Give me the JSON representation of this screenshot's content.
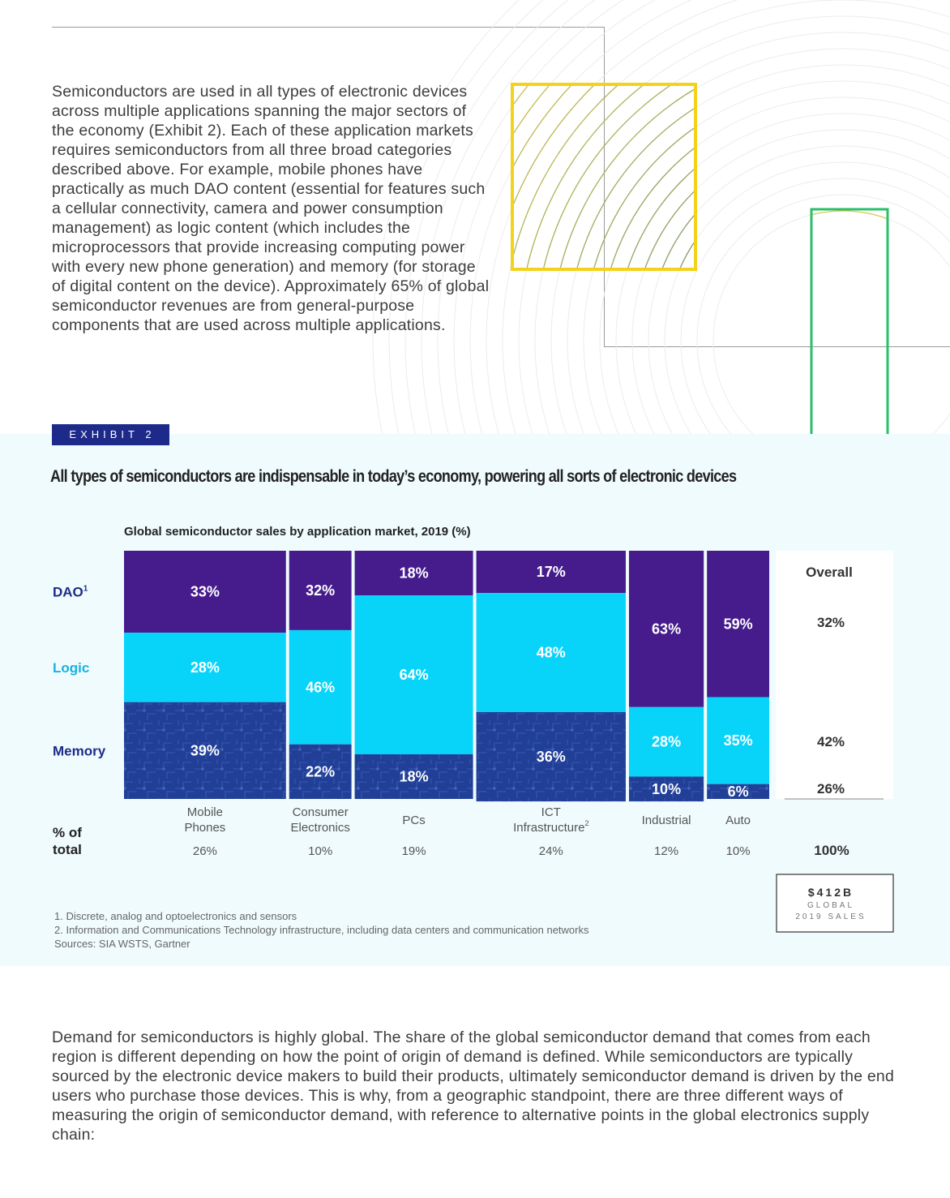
{
  "intro_paragraph": "Semiconductors are used in all types of electronic devices across multiple applications spanning the major sectors of the economy (Exhibit 2). Each of these application markets requires semiconductors from all three broad categories described above. For example, mobile phones have practically as much DAO content (essential for features such a cellular connectivity, camera and power consumption management) as logic content (which includes the microprocessors that provide increasing computing power with every new phone generation) and memory (for storage of digital content on the device). Approximately 65% of global semiconductor revenues are from general-purpose components that are used across multiple applications.",
  "exhibit": {
    "label": "EXHIBIT 2",
    "title": "All types of semiconductors are indispensable in today’s economy, powering all sorts of electronic devices"
  },
  "chart_data": {
    "type": "bar",
    "subtype": "marimekko",
    "title": "Global semiconductor sales by application market, 2019 (%)",
    "categories": [
      {
        "line1": "Mobile",
        "line2": "Phones"
      },
      {
        "line1": "Consumer",
        "line2": "Electronics"
      },
      {
        "line1": "PCs",
        "line2": ""
      },
      {
        "line1": "ICT",
        "line2": "Infrastructure",
        "sup": "2"
      },
      {
        "line1": "Industrial",
        "line2": ""
      },
      {
        "line1": "Auto",
        "line2": ""
      }
    ],
    "share_of_total_values": [
      26,
      10,
      19,
      24,
      12,
      10
    ],
    "share_of_total_labels": [
      "26%",
      "10%",
      "19%",
      "24%",
      "12%",
      "10%"
    ],
    "series": [
      {
        "name": "DAO",
        "sup": "1",
        "values": [
          33,
          32,
          18,
          17,
          63,
          59
        ],
        "labels": [
          "33%",
          "32%",
          "18%",
          "17%",
          "63%",
          "59%"
        ]
      },
      {
        "name": "Logic",
        "values": [
          28,
          46,
          64,
          48,
          28,
          35
        ],
        "labels": [
          "28%",
          "46%",
          "64%",
          "48%",
          "28%",
          "35%"
        ]
      },
      {
        "name": "Memory",
        "values": [
          39,
          22,
          18,
          36,
          10,
          6
        ],
        "labels": [
          "39%",
          "22%",
          "18%",
          "36%",
          "10%",
          "6%"
        ]
      }
    ],
    "colors": {
      "DAO": "#461c8c",
      "Logic": "#08d4fa",
      "Memory": "#213f97"
    },
    "label_colors": {
      "DAO": "#1d2a8a",
      "Logic": "#14b4e0",
      "Memory": "#1d2a8a"
    },
    "row_header": {
      "line1": "% of",
      "line2": "total"
    },
    "overall": {
      "header": "Overall",
      "values": [
        32,
        42,
        26
      ],
      "labels": [
        "32%",
        "42%",
        "26%"
      ],
      "total_label": "100%"
    },
    "global_sales": {
      "amount": "$412B",
      "line1": "GLOBAL",
      "line2": "2019 SALES"
    }
  },
  "footnotes": [
    "1. Discrete, analog and optoelectronics and sensors",
    "2. Information and Communications Technology infrastructure, including data centers and communication networks",
    "Sources: SIA WSTS, Gartner"
  ],
  "closing_paragraph": "Demand for semiconductors is highly global. The share of the global semiconductor demand that comes from each region is different depending on how the point of origin of demand is defined. While semiconductors are typically sourced by the electronic device makers to build their products, ultimately semiconductor demand is driven by the end users who purchase those devices. This is why, from a geographic standpoint, there are three different ways of measuring the origin of semiconductor demand, with reference to alternative points in the global electronics supply chain:"
}
